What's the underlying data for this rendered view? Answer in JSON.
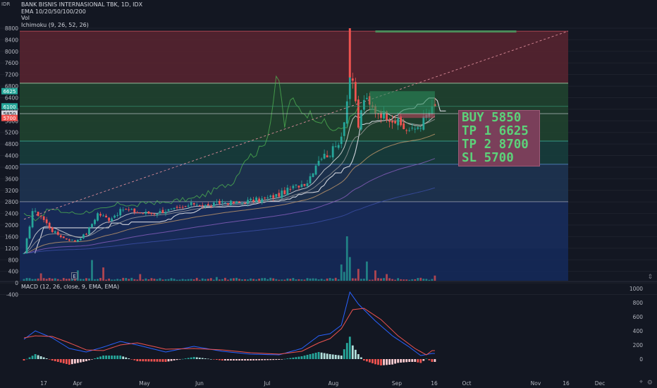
{
  "header": {
    "currency": "IDR",
    "symbol_line": "BANK BISNIS INTERNASIONAL TBK, 1D, IDX",
    "ema_label": "EMA 10/20/50/100/200",
    "vol_label": "Vol",
    "ichimoku_label": "Ichimoku (9, 26, 52, 26)"
  },
  "macd_panel": {
    "label": "MACD (12, 26, close, 9, EMA, EMA)"
  },
  "trade_box": {
    "lines": [
      "BUY 5850",
      "TP 1 6625",
      "TP 2 8700",
      "SL 5700"
    ]
  },
  "volume_badge": "E",
  "colors": {
    "background": "#131722",
    "up": "#26a69a",
    "down": "#ef5350",
    "grid": "#1e222d",
    "zone_red": "#5a2430",
    "zone_green": "#21452f",
    "zone_teal": "#173f3d",
    "zone_blue": "#1f3554",
    "zone_gray": "#2b2e38",
    "zone_navy": "#152a5c",
    "macd_line": "#2962ff",
    "signal_line": "#ef5350",
    "trade_text": "#5cd27a",
    "trade_bg": "#7a3f5a"
  },
  "chart_data": {
    "type": "candlestick",
    "title": "BANK BISNIS INTERNASIONAL TBK, 1D, IDX",
    "price_axis": {
      "ticks": [
        8800,
        8400,
        8000,
        7600,
        7200,
        6800,
        6400,
        6000,
        5600,
        5200,
        4800,
        4400,
        4000,
        3600,
        3200,
        2800,
        2400,
        2000,
        1600,
        1200,
        800,
        400,
        0,
        -400
      ],
      "labels": [
        "8800",
        "8400",
        "8000",
        "7600",
        "7200",
        "6800",
        "6400",
        "6000",
        "5600",
        "5200",
        "4800",
        "4400",
        "4000",
        "3600",
        "3200",
        "2800",
        "2400",
        "2000",
        "1600",
        "1200",
        "800",
        "400",
        "0",
        "-400"
      ],
      "price_tags": [
        {
          "value": 6625,
          "label": "6625",
          "color": "#26a69a"
        },
        {
          "value": 6100,
          "label": "6100",
          "color": "#26a69a"
        },
        {
          "value": 5850,
          "label": "5850",
          "color": "#d1d4dc"
        },
        {
          "value": 5700,
          "label": "5700",
          "color": "#ef5350"
        }
      ]
    },
    "time_axis": {
      "labels": [
        "17",
        "Apr",
        "May",
        "Jun",
        "Jul",
        "Aug",
        "Sep",
        "16",
        "Oct",
        "Nov",
        "16",
        "Dec"
      ]
    },
    "macd_axis": {
      "ticks": [
        1000,
        800,
        600,
        400,
        200,
        0
      ],
      "labels": [
        "1000",
        "800",
        "600",
        "400",
        "200",
        "0"
      ]
    },
    "levels": {
      "sl": 5700,
      "entry": 5850,
      "tp1": 6625,
      "tp2": 8700,
      "zones": [
        8700,
        6900,
        4900,
        4100,
        2800,
        1200
      ]
    },
    "anchors": {
      "closes": [
        [
          0,
          1000
        ],
        [
          3,
          2500
        ],
        [
          6,
          2300
        ],
        [
          10,
          1800
        ],
        [
          14,
          1550
        ],
        [
          18,
          1450
        ],
        [
          22,
          1700
        ],
        [
          26,
          2400
        ],
        [
          30,
          2200
        ],
        [
          35,
          2550
        ],
        [
          40,
          2450
        ],
        [
          45,
          2400
        ],
        [
          50,
          2500
        ],
        [
          55,
          2550
        ],
        [
          60,
          2750
        ],
        [
          65,
          2650
        ],
        [
          70,
          2800
        ],
        [
          75,
          2750
        ],
        [
          80,
          2850
        ],
        [
          85,
          2900
        ],
        [
          90,
          3050
        ],
        [
          95,
          3300
        ],
        [
          100,
          3500
        ],
        [
          104,
          4300
        ],
        [
          108,
          4500
        ],
        [
          110,
          4700
        ],
        [
          112,
          5100
        ],
        [
          114,
          6300
        ],
        [
          115,
          7200
        ],
        [
          116,
          6800
        ],
        [
          117,
          6200
        ],
        [
          118,
          5400
        ],
        [
          120,
          6400
        ],
        [
          122,
          6100
        ],
        [
          125,
          5900
        ],
        [
          128,
          5800
        ],
        [
          131,
          5600
        ],
        [
          134,
          5350
        ],
        [
          137,
          5250
        ],
        [
          140,
          5500
        ],
        [
          143,
          5900
        ],
        [
          145,
          6050
        ]
      ],
      "volume_spikes": [
        [
          6,
          50
        ],
        [
          19,
          70
        ],
        [
          24,
          140
        ],
        [
          28,
          90
        ],
        [
          41,
          45
        ],
        [
          68,
          25
        ],
        [
          87,
          20
        ],
        [
          101,
          15
        ],
        [
          110,
          20
        ],
        [
          112,
          110
        ],
        [
          113,
          60
        ],
        [
          114,
          300
        ],
        [
          115,
          160
        ],
        [
          118,
          80
        ],
        [
          121,
          130
        ],
        [
          124,
          70
        ],
        [
          128,
          45
        ],
        [
          140,
          20
        ],
        [
          145,
          35
        ]
      ]
    },
    "macd_anchors": {
      "macd": [
        [
          0,
          280
        ],
        [
          4,
          400
        ],
        [
          10,
          300
        ],
        [
          16,
          150
        ],
        [
          22,
          100
        ],
        [
          28,
          170
        ],
        [
          34,
          250
        ],
        [
          40,
          200
        ],
        [
          50,
          100
        ],
        [
          60,
          180
        ],
        [
          70,
          110
        ],
        [
          80,
          70
        ],
        [
          90,
          60
        ],
        [
          98,
          150
        ],
        [
          104,
          330
        ],
        [
          108,
          360
        ],
        [
          112,
          480
        ],
        [
          115,
          950
        ],
        [
          118,
          780
        ],
        [
          124,
          540
        ],
        [
          130,
          330
        ],
        [
          136,
          170
        ],
        [
          140,
          50
        ],
        [
          144,
          80
        ]
      ],
      "signal": [
        [
          0,
          300
        ],
        [
          4,
          330
        ],
        [
          10,
          320
        ],
        [
          16,
          230
        ],
        [
          22,
          130
        ],
        [
          28,
          120
        ],
        [
          34,
          200
        ],
        [
          40,
          230
        ],
        [
          50,
          140
        ],
        [
          60,
          150
        ],
        [
          70,
          130
        ],
        [
          80,
          90
        ],
        [
          90,
          70
        ],
        [
          98,
          110
        ],
        [
          104,
          230
        ],
        [
          108,
          290
        ],
        [
          112,
          430
        ],
        [
          116,
          700
        ],
        [
          120,
          720
        ],
        [
          126,
          560
        ],
        [
          132,
          330
        ],
        [
          138,
          150
        ],
        [
          142,
          60
        ],
        [
          144,
          120
        ]
      ]
    }
  }
}
